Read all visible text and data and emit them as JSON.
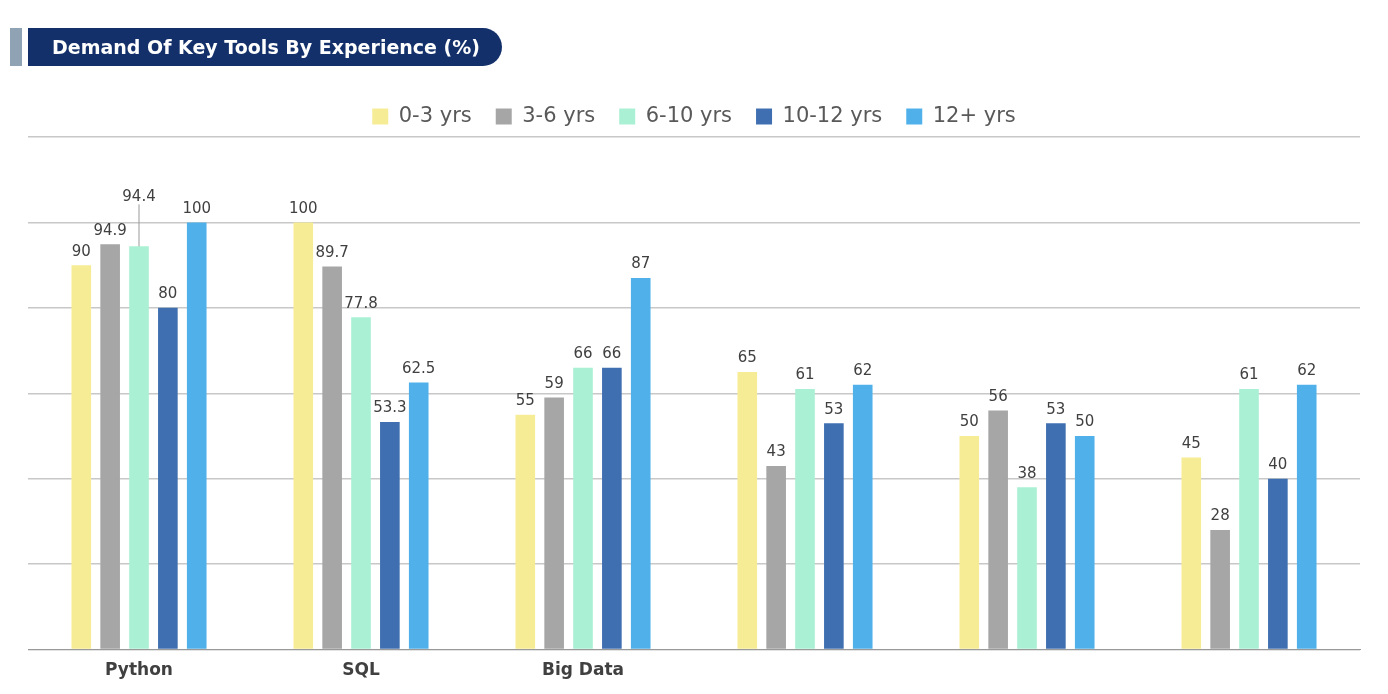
{
  "chart_data": {
    "type": "bar",
    "title": "Demand Of Key Tools By Experience (%)",
    "categories": [
      "Python",
      "SQL",
      "Big Data",
      null,
      null,
      null
    ],
    "series": [
      {
        "name": "0-3 yrs",
        "color": "#f7ec96",
        "values": [
          90,
          100,
          55,
          65,
          50,
          45
        ]
      },
      {
        "name": "3-6 yrs",
        "color": "#a6a6a6",
        "values": [
          94.9,
          89.7,
          59,
          43,
          56,
          28
        ]
      },
      {
        "name": "6-10 yrs",
        "color": "#aaf0d4",
        "values": [
          94.4,
          77.8,
          66,
          61,
          38,
          61
        ]
      },
      {
        "name": "10-12 yrs",
        "color": "#3f6fb0",
        "values": [
          80,
          53.3,
          66,
          53,
          53,
          40
        ]
      },
      {
        "name": "12+ yrs",
        "color": "#4fb0ea",
        "values": [
          100,
          62.5,
          87,
          62,
          50,
          62
        ]
      }
    ],
    "ylim": [
      0,
      120
    ],
    "yticks": [
      {
        "value": 0,
        "label": null
      },
      {
        "value": 20,
        "label": null
      },
      {
        "value": 40,
        "label": null
      },
      {
        "value": 60,
        "label": null
      },
      {
        "value": 80,
        "label": null
      },
      {
        "value": 100,
        "label": null
      },
      {
        "value": 120,
        "label": null
      }
    ],
    "tick_labels": "x",
    "grid": "y",
    "legend": "top",
    "data_labels": true
  }
}
